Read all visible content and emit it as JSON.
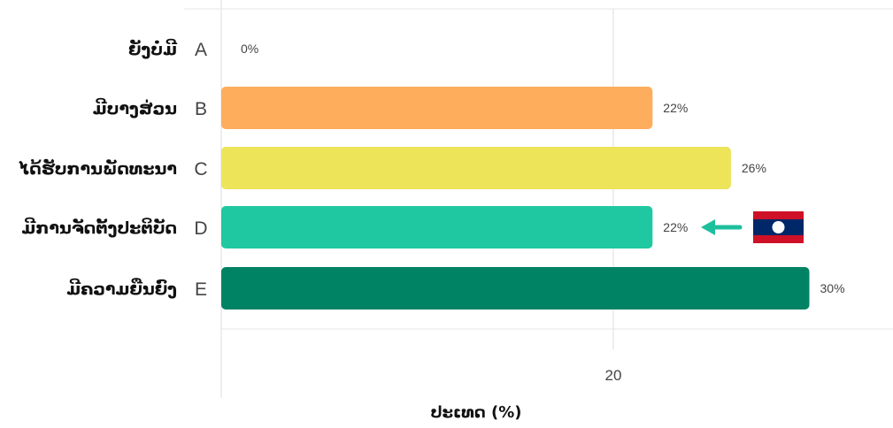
{
  "chart_data": {
    "type": "bar",
    "orientation": "horizontal",
    "categories": [
      {
        "letter": "A",
        "label": "ຍັງບໍ່ມີ"
      },
      {
        "letter": "B",
        "label": "ມີບາງສ່ວນ"
      },
      {
        "letter": "C",
        "label": "ໄດ້ຮັບການພັດທະນາ"
      },
      {
        "letter": "D",
        "label": "ມີການຈັດຕັ້ງປະຕິບັດ"
      },
      {
        "letter": "E",
        "label": "ມີຄວາມຍືນຍົງ"
      }
    ],
    "values": [
      0,
      22,
      26,
      22,
      30
    ],
    "value_labels": [
      "0%",
      "22%",
      "26%",
      "22%",
      "30%"
    ],
    "colors": [
      "#f3a34b",
      "#fdad5c",
      "#ede45a",
      "#1fc8a1",
      "#008265"
    ],
    "xlabel": "ປະເທດ (%)",
    "xticks": [
      20
    ],
    "tick_labels": [
      "20"
    ],
    "xlim": [
      0,
      34
    ],
    "grid": true,
    "highlight": {
      "category": "D",
      "arrow_color": "#1dbf9c",
      "flag": "laos-flag",
      "flag_colors": {
        "red": "#ce1126",
        "blue": "#002868",
        "white": "#ffffff"
      }
    }
  }
}
